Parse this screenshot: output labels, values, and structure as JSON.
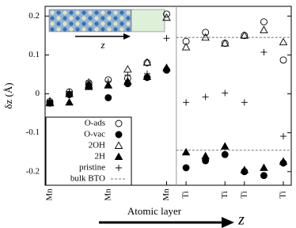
{
  "chart_data": {
    "type": "scatter",
    "ylabel": "δz (Å)",
    "xlabel": "Atomic layer",
    "axis_arrow_label": "z",
    "inset_label": "z",
    "categories": [
      "Mn",
      null,
      null,
      "Mn",
      null,
      null,
      "Mn",
      "Ti",
      null,
      "Ti",
      "Ti",
      null,
      "Ti"
    ],
    "divider_after": 6,
    "ylim": [
      -0.235,
      0.225
    ],
    "yticks": [
      -0.2,
      -0.1,
      0,
      0.1,
      0.2
    ],
    "legend": "lower left",
    "series": [
      {
        "name": "O-ads",
        "marker": "open-circle",
        "color": "#000000",
        "values": [
          -0.02,
          0.005,
          0.028,
          0.036,
          0.04,
          0.08,
          0.205,
          0.135,
          0.158,
          0.13,
          0.15,
          0.185,
          0.087
        ]
      },
      {
        "name": "O-vac",
        "marker": "filled-circle",
        "color": "#000000",
        "values": [
          -0.024,
          -0.002,
          0.022,
          -0.01,
          0.026,
          0.042,
          0.061,
          -0.19,
          -0.172,
          -0.156,
          -0.2,
          -0.21,
          -0.178
        ]
      },
      {
        "name": "2OH",
        "marker": "open-triangle",
        "color": "#000000",
        "values": [
          -0.022,
          0,
          0.022,
          0.022,
          0.063,
          0.081,
          0.196,
          0.12,
          0.145,
          0.13,
          0.15,
          0.164,
          0.133
        ]
      },
      {
        "name": "2H",
        "marker": "filled-triangle",
        "color": "#000000",
        "values": [
          -0.024,
          -0.022,
          0.018,
          0.022,
          0.032,
          0.044,
          0.067,
          -0.15,
          -0.16,
          -0.135,
          -0.196,
          -0.19,
          -0.174
        ]
      },
      {
        "name": "pristine",
        "marker": "plus",
        "color": "#000000",
        "values": [
          -0.016,
          0.006,
          0.032,
          0.032,
          0.048,
          0.052,
          0.143,
          -0.022,
          -0.008,
          0.002,
          -0.022,
          0.107,
          -0.109
        ]
      }
    ],
    "reference_lines": {
      "name": "bulk BTO",
      "color": "#777777",
      "values": [
        0.145,
        -0.145
      ]
    }
  }
}
